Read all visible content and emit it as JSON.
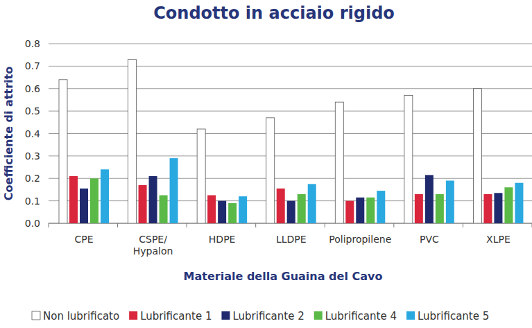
{
  "chart_data": {
    "type": "bar",
    "title": "Condotto in acciaio rigido",
    "x_label": "Materiale della Guaina del Cavo",
    "y_label": "Coefficiente di attrito",
    "categories": [
      "CPE",
      "CSPE/Hypalon",
      "HDPE",
      "LLDPE",
      "Polipropilene",
      "PVC",
      "XLPE"
    ],
    "series": [
      {
        "name": "Non lubrificato",
        "color": "#ffffff",
        "values": [
          0.64,
          0.73,
          0.42,
          0.47,
          0.54,
          0.57,
          0.6
        ]
      },
      {
        "name": "Lubrificante 1",
        "color": "#d9263c",
        "values": [
          0.21,
          0.17,
          0.125,
          0.155,
          0.1,
          0.13,
          0.13
        ]
      },
      {
        "name": "Lubrificante 2",
        "color": "#1f2a6e",
        "values": [
          0.155,
          0.21,
          0.1,
          0.1,
          0.115,
          0.215,
          0.135
        ]
      },
      {
        "name": "Lubrificante 4",
        "color": "#5bb947",
        "values": [
          0.2,
          0.125,
          0.09,
          0.13,
          0.115,
          0.13,
          0.16
        ]
      },
      {
        "name": "Lubrificante 5",
        "color": "#2aa9e1",
        "values": [
          0.24,
          0.29,
          0.12,
          0.175,
          0.145,
          0.19,
          0.18
        ]
      }
    ],
    "ylim": [
      0,
      0.8
    ],
    "yticks": [
      {
        "value": 0,
        "label": "0.0"
      },
      0.1,
      0.2,
      0.3,
      0.4,
      0.5,
      0.6,
      0.7,
      0.8
    ],
    "grid": true,
    "legend": "bottom"
  }
}
